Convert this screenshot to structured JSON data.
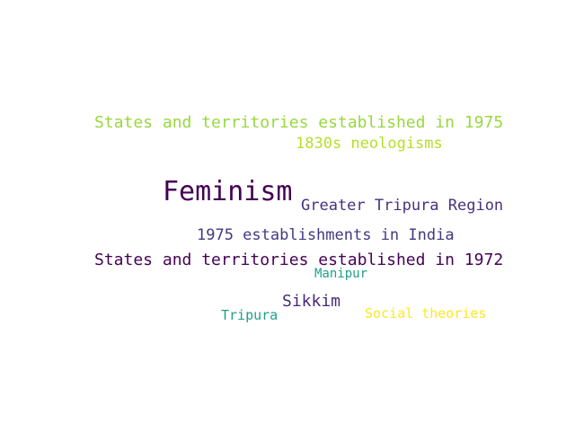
{
  "word_cloud": {
    "background": "#ffffff",
    "words": [
      {
        "text": "States and territories established in 1975",
        "color": "#98d83e"
      },
      {
        "text": "1830s neologisms",
        "color": "#b5de2b"
      },
      {
        "text": "Feminism",
        "color": "#440154"
      },
      {
        "text": "Greater Tripura Region",
        "color": "#46337e"
      },
      {
        "text": "1975 establishments in India",
        "color": "#453781"
      },
      {
        "text": "States and territories established in 1972",
        "color": "#440154"
      },
      {
        "text": "Manipur",
        "color": "#1fa187"
      },
      {
        "text": "Sikkim",
        "color": "#482979"
      },
      {
        "text": "Social theories",
        "color": "#fde725"
      },
      {
        "text": "Tripura",
        "color": "#1f9e89"
      }
    ]
  }
}
